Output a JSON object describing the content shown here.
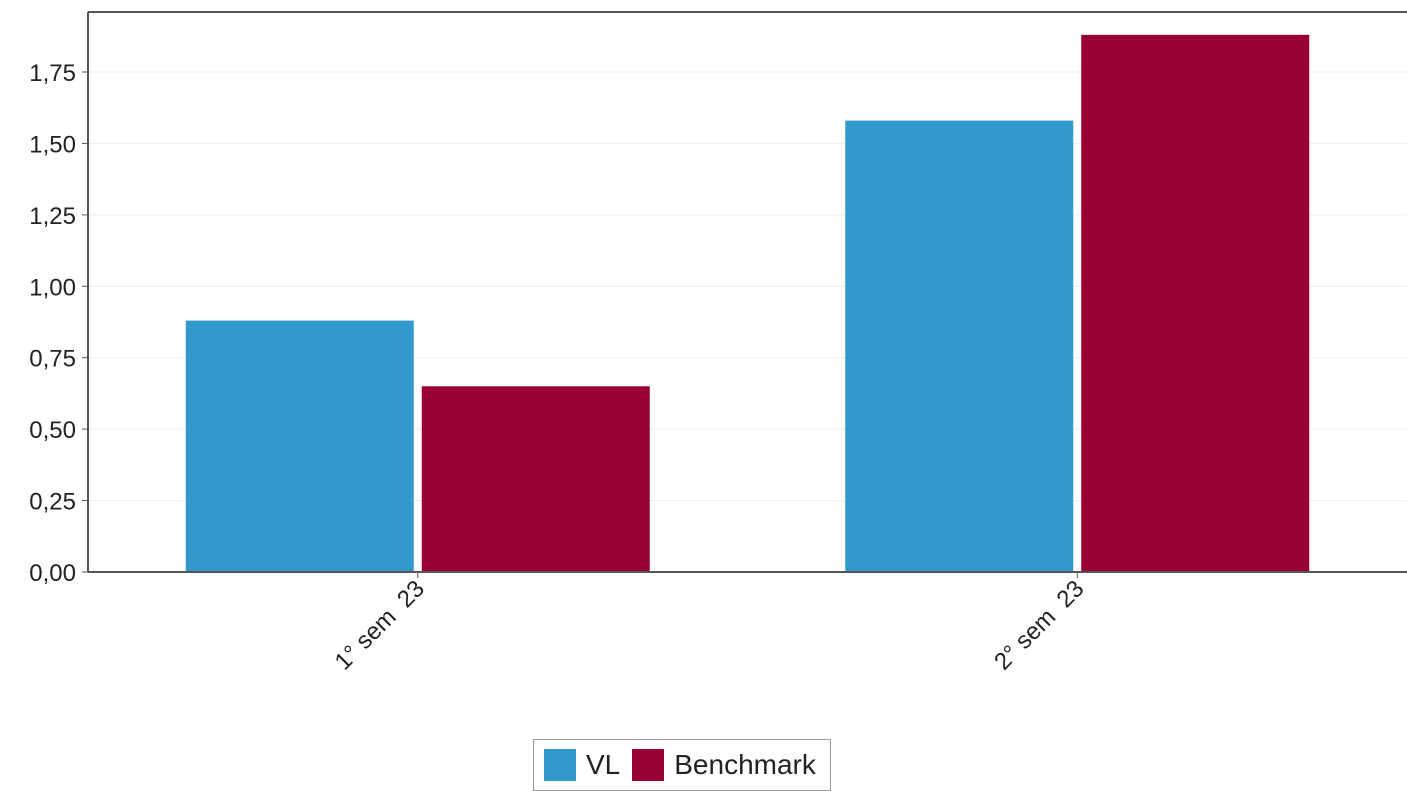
{
  "chart_data": {
    "type": "bar",
    "categories": [
      "1° sem  23",
      "2° sem  23"
    ],
    "series": [
      {
        "name": "VL",
        "values": [
          0.88,
          1.58
        ],
        "color": "#3399cc"
      },
      {
        "name": "Benchmark",
        "values": [
          0.65,
          1.88
        ],
        "color": "#990033"
      }
    ],
    "ylim": [
      0,
      1.96
    ],
    "yticks": [
      {
        "value": 0,
        "label": "0,00"
      },
      {
        "value": 0.25,
        "label": "0,25"
      },
      {
        "value": 0.5,
        "label": "0,50"
      },
      {
        "value": 0.75,
        "label": "0,75"
      },
      {
        "value": 1.0,
        "label": "1,00"
      },
      {
        "value": 1.25,
        "label": "1,25"
      },
      {
        "value": 1.5,
        "label": "1,50"
      },
      {
        "value": 1.75,
        "label": "1,75"
      }
    ],
    "grid": true,
    "legend_position": "bottom",
    "title": "",
    "xlabel": "",
    "ylabel": ""
  },
  "legend": {
    "items": [
      {
        "label": "VL",
        "color": "#3399cc"
      },
      {
        "label": "Benchmark",
        "color": "#990033"
      }
    ]
  }
}
